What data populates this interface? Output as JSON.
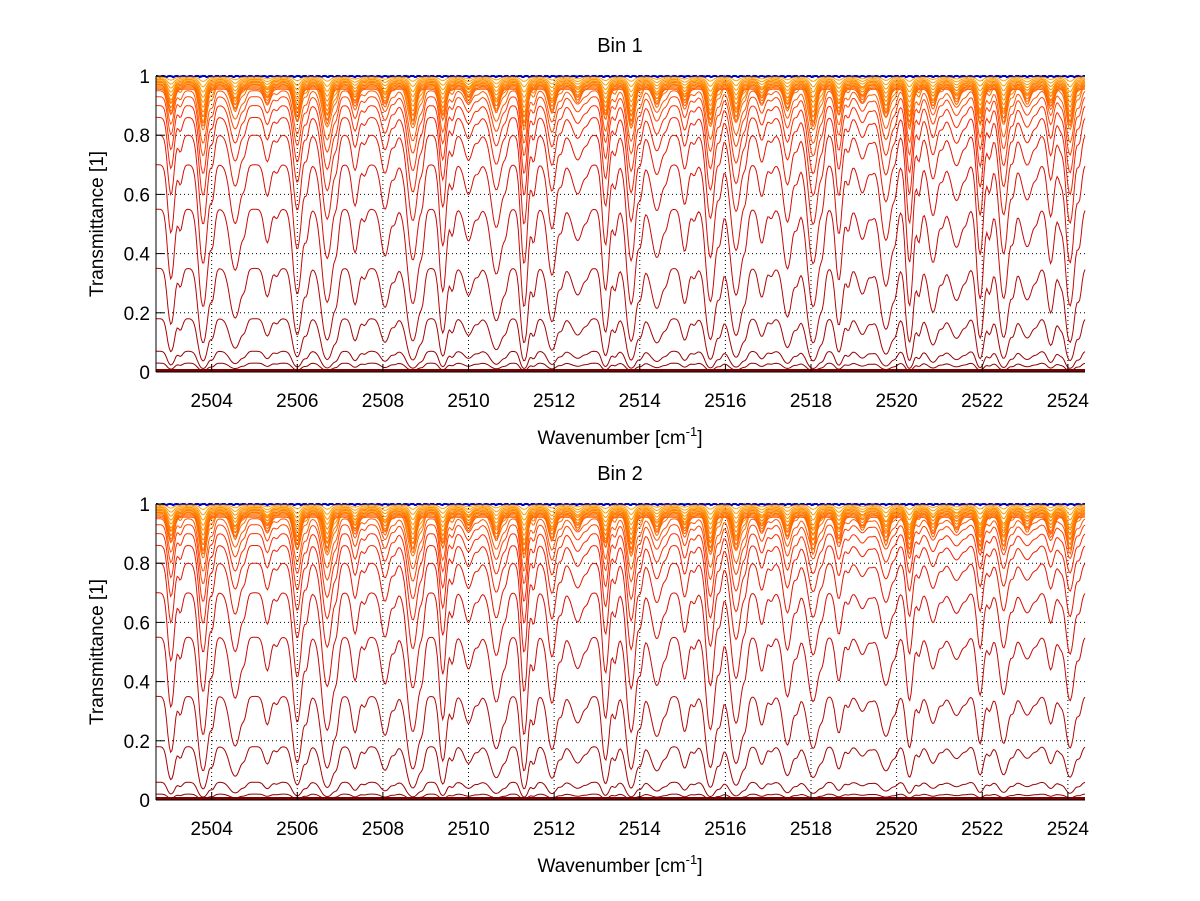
{
  "chart_data": [
    {
      "type": "line",
      "title": "Bin 1",
      "xlabel": "Wavenumber [cm-1]",
      "xlabel_base": "Wavenumber [cm",
      "xlabel_sup": "-1",
      "xlabel_end": "]",
      "ylabel": "Transmittance [1]",
      "xlim": [
        2502.7,
        2524.4
      ],
      "ylim": [
        0,
        1
      ],
      "xticks": [
        2504,
        2506,
        2508,
        2510,
        2512,
        2514,
        2516,
        2518,
        2520,
        2522,
        2524
      ],
      "yticks": [
        0,
        0.2,
        0.4,
        0.6,
        0.8,
        1
      ],
      "ytick_labels": [
        "0",
        "0.2",
        "0.4",
        "0.6",
        "0.8",
        "1"
      ],
      "grid": true,
      "series_note": "Many transmittance spectra colored from dark red (low transmittance) through orange/yellow to blue (near 1)",
      "baseline_levels": [
        0.005,
        0.03,
        0.07,
        0.18,
        0.35,
        0.55,
        0.7,
        0.8,
        0.86,
        0.9,
        0.93,
        0.95,
        0.97,
        0.98,
        0.99,
        1.0
      ],
      "line_centers": [
        2503.05,
        2503.8,
        2504.55,
        2505.3,
        2506.0,
        2506.7,
        2507.35,
        2508.05,
        2508.7,
        2509.4,
        2510.0,
        2510.65,
        2511.3,
        2511.95,
        2512.55,
        2513.2,
        2513.8,
        2514.4,
        2515.05,
        2515.65,
        2516.25,
        2516.85,
        2517.45,
        2518.05,
        2518.65,
        2519.2,
        2519.75,
        2520.3,
        2520.85,
        2521.4,
        2521.95,
        2522.5,
        2523.05,
        2523.6,
        2524.05
      ]
    },
    {
      "type": "line",
      "title": "Bin 2",
      "xlabel": "Wavenumber [cm-1]",
      "xlabel_base": "Wavenumber [cm",
      "xlabel_sup": "-1",
      "xlabel_end": "]",
      "ylabel": "Transmittance [1]",
      "xlim": [
        2502.7,
        2524.4
      ],
      "ylim": [
        0,
        1
      ],
      "xticks": [
        2504,
        2506,
        2508,
        2510,
        2512,
        2514,
        2516,
        2518,
        2520,
        2522,
        2524
      ],
      "yticks": [
        0,
        0.2,
        0.4,
        0.6,
        0.8,
        1
      ],
      "ytick_labels": [
        "0",
        "0.2",
        "0.4",
        "0.6",
        "0.8",
        "1"
      ],
      "grid": true,
      "series_note": "Many transmittance spectra colored from dark red (low transmittance) through orange/yellow to blue (near 1)",
      "baseline_levels": [
        0.005,
        0.02,
        0.06,
        0.18,
        0.35,
        0.55,
        0.7,
        0.8,
        0.86,
        0.9,
        0.93,
        0.95,
        0.97,
        0.98,
        0.99,
        1.0
      ],
      "line_centers": [
        2503.05,
        2503.8,
        2504.55,
        2505.3,
        2506.0,
        2506.7,
        2507.35,
        2508.05,
        2508.7,
        2509.4,
        2510.0,
        2510.65,
        2511.3,
        2511.95,
        2512.55,
        2513.2,
        2513.8,
        2514.4,
        2515.05,
        2515.65,
        2516.25,
        2516.85,
        2517.45,
        2518.05,
        2518.65,
        2519.2,
        2519.75,
        2520.3,
        2520.85,
        2521.4,
        2521.95,
        2522.5,
        2523.05,
        2523.6,
        2524.05
      ]
    }
  ],
  "colors": {
    "low": "#7f0000",
    "mid": "#ff2000",
    "high": "#ffa500",
    "top": "#0000c0",
    "grid": "#000000"
  }
}
